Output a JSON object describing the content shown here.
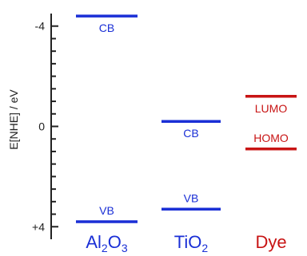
{
  "axis": {
    "label": "E[NHE] / eV",
    "range": [
      -4.5,
      4.5
    ],
    "ticks": [
      {
        "value": -4,
        "label": "-4"
      },
      {
        "value": 0,
        "label": "0"
      },
      {
        "value": 4,
        "label": "+4"
      }
    ],
    "minor_step": 0.5
  },
  "colors": {
    "semiconductor": "#1a2fd6",
    "dye": "#c81414",
    "axis": "#222222"
  },
  "columns": [
    {
      "key": "al2o3",
      "base": "Al",
      "sub1": "2",
      "mid": "O",
      "sub2": "3",
      "color": "#1a2fd6",
      "levels": [
        {
          "name": "cb",
          "label": "CB",
          "energy": -4.4,
          "label_pos": "below"
        },
        {
          "name": "vb",
          "label": "VB",
          "energy": 3.8,
          "label_pos": "above"
        }
      ]
    },
    {
      "key": "tio2",
      "base": "TiO",
      "sub1": "2",
      "color": "#1a2fd6",
      "levels": [
        {
          "name": "cb",
          "label": "CB",
          "energy": -0.2,
          "label_pos": "below"
        },
        {
          "name": "vb",
          "label": "VB",
          "energy": 3.3,
          "label_pos": "above"
        }
      ]
    },
    {
      "key": "dye",
      "base": "Dye",
      "color": "#c81414",
      "levels": [
        {
          "name": "lumo",
          "label": "LUMO",
          "energy": -1.2,
          "label_pos": "below"
        },
        {
          "name": "homo",
          "label": "HOMO",
          "energy": 0.9,
          "label_pos": "above"
        }
      ]
    }
  ]
}
